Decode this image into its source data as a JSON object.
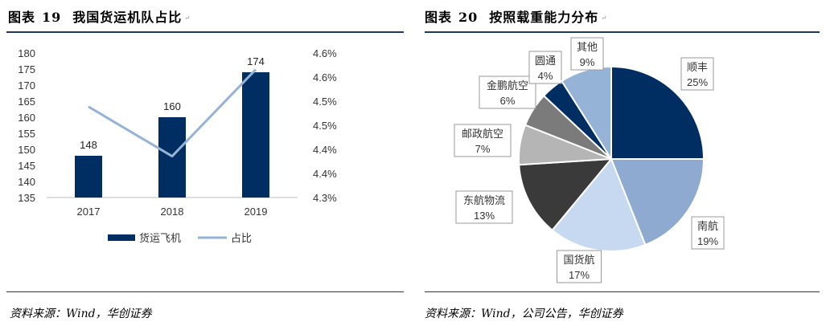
{
  "paragraph_mark": "↵",
  "left_panel": {
    "figure_label": "图表",
    "figure_number": "19",
    "title": "我国货运机队占比",
    "source": "资料来源：Wind，华创证券"
  },
  "right_panel": {
    "figure_label": "图表",
    "figure_number": "20",
    "title": "按照载重能力分布",
    "source": "资料来源：Wind，公司公告，华创证券"
  },
  "chart_data": [
    {
      "type": "bar",
      "title": "我国货运机队占比",
      "categories": [
        "2017",
        "2018",
        "2019"
      ],
      "series": [
        {
          "name": "货运飞机",
          "type": "bar",
          "axis": "left",
          "values": [
            148,
            160,
            174
          ],
          "color": "#002d62"
        },
        {
          "name": "占比",
          "type": "line",
          "axis": "right",
          "values": [
            4.52,
            4.4,
            4.61
          ],
          "color": "#95b3d7"
        }
      ],
      "ylim": [
        135,
        180
      ],
      "y_ticks": [
        "135",
        "140",
        "145",
        "150",
        "155",
        "160",
        "165",
        "170",
        "175",
        "180"
      ],
      "y2lim": [
        4.3,
        4.65
      ],
      "y2_ticks": [
        "4.3%",
        "4.4%",
        "4.4%",
        "4.5%",
        "4.5%",
        "4.6%",
        "4.6%"
      ],
      "data_labels": [
        "148",
        "160",
        "174"
      ],
      "legend": [
        "货运飞机",
        "占比"
      ],
      "legend_position": "bottom",
      "grid": false
    },
    {
      "type": "pie",
      "title": "按照载重能力分布",
      "slices": [
        {
          "label": "顺丰",
          "value": 25,
          "pct": "25%",
          "color": "#002d62"
        },
        {
          "label": "南航",
          "value": 19,
          "pct": "19%",
          "color": "#8eaad0"
        },
        {
          "label": "国货航",
          "value": 17,
          "pct": "17%",
          "color": "#c6d9f1"
        },
        {
          "label": "东航物流",
          "value": 13,
          "pct": "13%",
          "color": "#3a3a3a"
        },
        {
          "label": "邮政航空",
          "value": 7,
          "pct": "7%",
          "color": "#b5b5b5"
        },
        {
          "label": "金鹏航空",
          "value": 6,
          "pct": "6%",
          "color": "#7b7b7b"
        },
        {
          "label": "圆通",
          "value": 4,
          "pct": "4%",
          "color": "#002d62"
        },
        {
          "label": "其他",
          "value": 9,
          "pct": "9%",
          "color": "#95b3d7"
        }
      ],
      "start_angle_deg": 0,
      "direction": "clockwise"
    }
  ]
}
